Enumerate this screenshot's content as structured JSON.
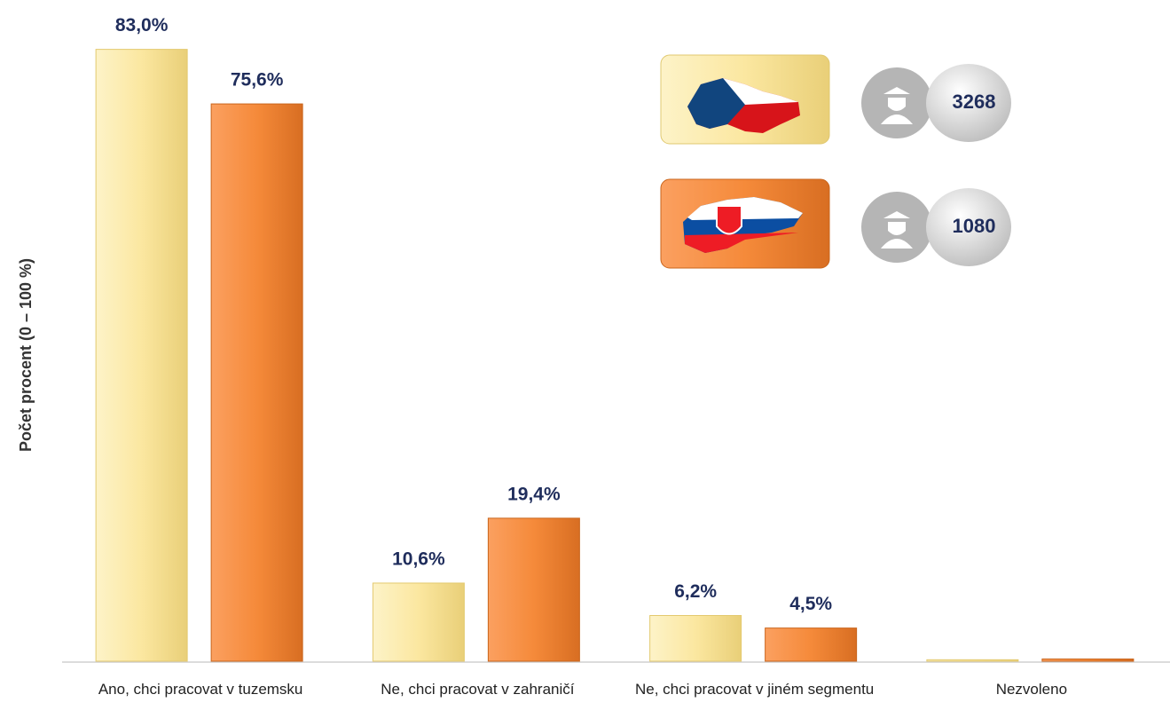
{
  "chart_data": {
    "type": "bar",
    "y_label": "Počet procent  (0 – 100 %)",
    "categories": [
      "Ano, chci pracovat v tuzemsku",
      "Ne, chci pracovat v zahraničí",
      "Ne, chci pracovat v jiném segmentu",
      "Nezvoleno"
    ],
    "series": [
      {
        "name": "3268",
        "color": "#fbe7a0",
        "values": [
          83.0,
          10.6,
          6.2,
          0.2
        ],
        "value_labels": [
          "83,0%",
          "10,6%",
          "6,2%",
          null
        ]
      },
      {
        "name": "1080",
        "color": "#f58a3a",
        "values": [
          75.6,
          19.4,
          4.5,
          0.3
        ],
        "value_labels": [
          "75,6%",
          "19,4%",
          "4,5%",
          null
        ]
      }
    ],
    "ylim": [
      0,
      85
    ]
  }
}
